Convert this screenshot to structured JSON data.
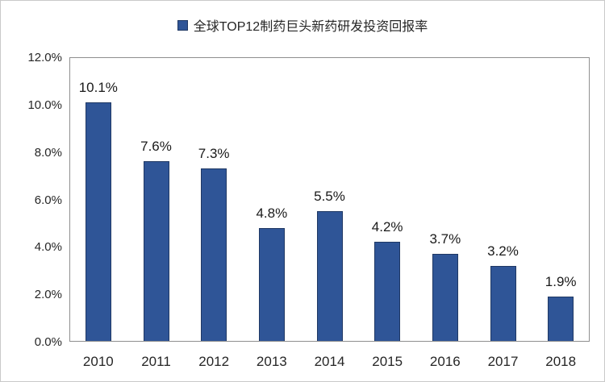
{
  "chart_data": {
    "type": "bar",
    "title": "全球TOP12制药巨头新药研发投资回报率",
    "categories": [
      "2010",
      "2011",
      "2012",
      "2013",
      "2014",
      "2015",
      "2016",
      "2017",
      "2018"
    ],
    "values": [
      10.1,
      7.6,
      7.3,
      4.8,
      5.5,
      4.2,
      3.7,
      3.2,
      1.9
    ],
    "data_labels": [
      "10.1%",
      "7.6%",
      "7.3%",
      "4.8%",
      "5.5%",
      "4.2%",
      "3.7%",
      "3.2%",
      "1.9%"
    ],
    "xlabel": "",
    "ylabel": "",
    "ylim": [
      0,
      12
    ],
    "ytick_step": 2,
    "ytick_labels": [
      "0.0%",
      "2.0%",
      "4.0%",
      "6.0%",
      "8.0%",
      "10.0%",
      "12.0%"
    ],
    "grid": false,
    "legend_position": "top-center",
    "colors": {
      "bar_fill": "#2f5597",
      "bar_border": "#1f3864",
      "plot_border": "#8f8f8f",
      "canvas_border": "#c9c9c9",
      "text": "#262626"
    }
  }
}
